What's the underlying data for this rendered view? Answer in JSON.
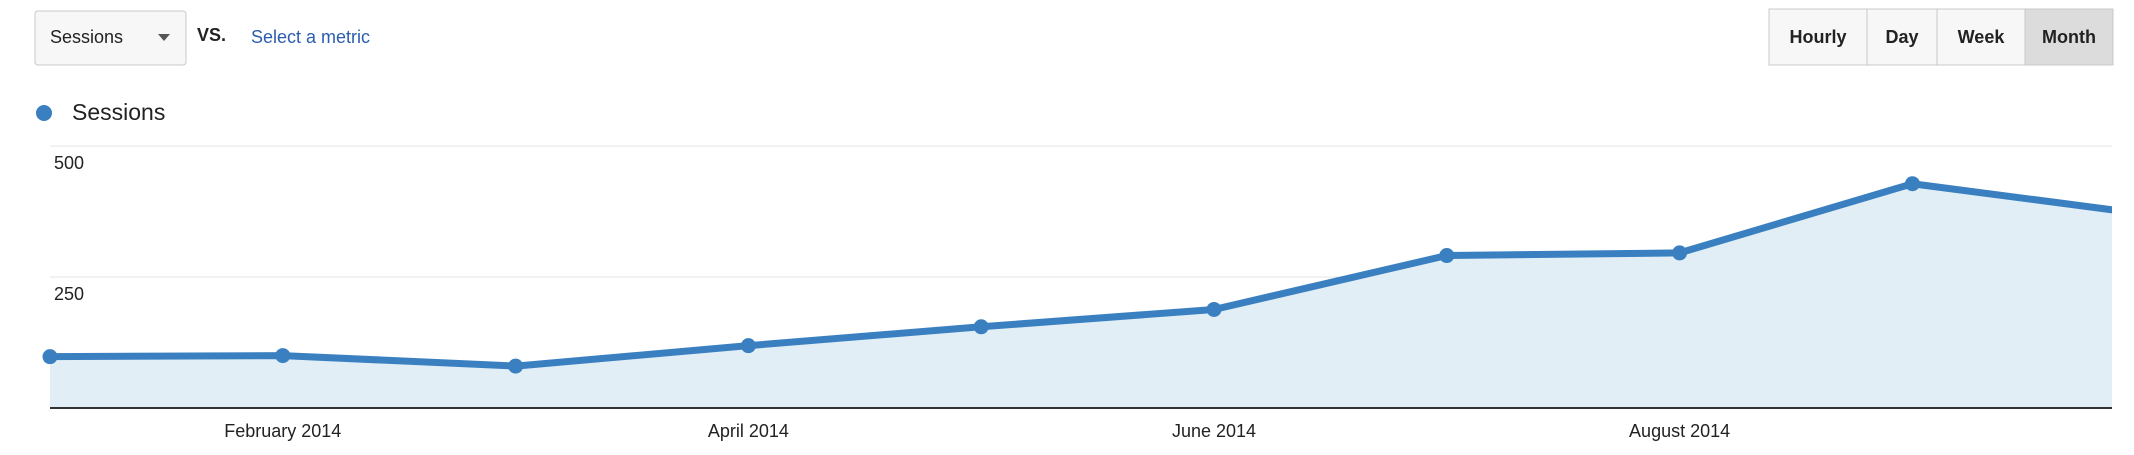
{
  "toolbar": {
    "metric": "Sessions",
    "vs": "VS.",
    "select": "Select a metric",
    "buttons": [
      "Hourly",
      "Day",
      "Week",
      "Month"
    ],
    "active": "Month"
  },
  "chart_data": {
    "type": "line",
    "categories": [
      null,
      "February 2014",
      null,
      "April 2014",
      null,
      "June 2014",
      null,
      "August 2014",
      null,
      null
    ],
    "series": [
      {
        "name": "Sessions",
        "color": "#3a80c1",
        "values": [
          98,
          100,
          80,
          119,
          155,
          188,
          291,
          296,
          428,
          370
        ]
      }
    ],
    "ylim": [
      0,
      500
    ],
    "yticks": [
      250,
      500
    ],
    "grid": true
  }
}
